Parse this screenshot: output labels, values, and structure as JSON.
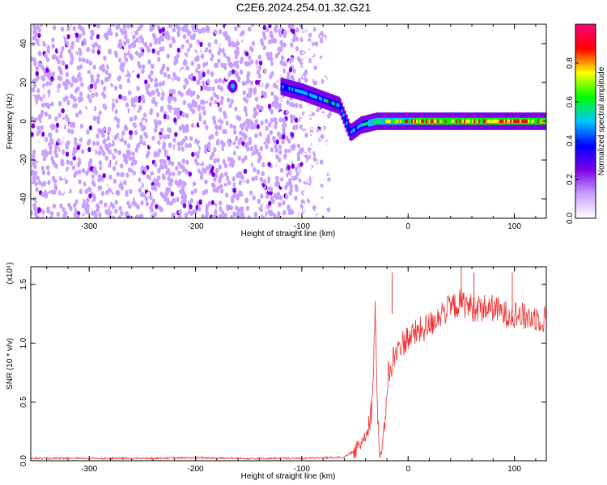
{
  "title": "C2E6.2024.254.01.32.G21",
  "chart_data": [
    {
      "type": "heatmap",
      "xlabel": "Height of straight line (km)",
      "ylabel": "Frequency (Hz)",
      "xlim": [
        -355,
        130
      ],
      "ylim": [
        -50,
        50
      ],
      "xticks": [
        -300,
        -200,
        -100,
        0,
        100
      ],
      "yticks": [
        -40,
        -20,
        0,
        20,
        40
      ],
      "colorbar": {
        "label": "Normalized spectral amplitude",
        "range": [
          0,
          1
        ],
        "ticks": [
          "0.0",
          "0.2",
          "0.4",
          "0.6",
          "0.8"
        ],
        "colors": [
          "#ffffff",
          "#c8a0ff",
          "#7a00e6",
          "#0000ff",
          "#00c8ff",
          "#00ff00",
          "#ffff00",
          "#ff0000",
          "#ff0080"
        ]
      },
      "noise_region_x": [
        -355,
        -70
      ],
      "signal_track": {
        "x": [
          -120,
          -100,
          -80,
          -65,
          -55,
          -45,
          -30,
          0,
          50,
          100,
          130
        ],
        "frequency": [
          18,
          15,
          11,
          8,
          -6,
          -2,
          0,
          0,
          0,
          0,
          0
        ],
        "peak_amplitude": [
          0.45,
          0.5,
          0.55,
          0.5,
          0.45,
          0.55,
          0.7,
          0.8,
          0.85,
          0.85,
          0.8
        ]
      },
      "feature": {
        "x": -165,
        "frequency": 18
      }
    },
    {
      "type": "line",
      "xlabel": "Height of straight line (km)",
      "ylabel": "SNR (10 * v/v)",
      "scale_label": "(x10⁴)",
      "xlim": [
        -355,
        130
      ],
      "ylim": [
        0,
        1.65
      ],
      "xticks": [
        -300,
        -200,
        -100,
        0,
        100
      ],
      "yticks": [
        "0.0",
        "0.5",
        "1.0",
        "1.5"
      ],
      "color": "#ee3333",
      "series": [
        {
          "x": [
            -355,
            -300,
            -250,
            -200,
            -150,
            -100,
            -60,
            -48,
            -40,
            -34,
            -31,
            -29,
            -27,
            -25,
            -22,
            -20,
            -18,
            -16,
            -14,
            -12,
            -10,
            -5,
            0,
            10,
            20,
            30,
            40,
            50,
            60,
            70,
            80,
            90,
            100,
            110,
            120,
            130
          ],
          "y": [
            0.02,
            0.02,
            0.02,
            0.025,
            0.02,
            0.02,
            0.03,
            0.1,
            0.22,
            0.45,
            1.3,
            0.45,
            0.1,
            0.05,
            0.3,
            0.6,
            0.8,
            0.7,
            0.9,
            0.85,
            0.95,
            1.0,
            1.05,
            1.1,
            1.15,
            1.25,
            1.3,
            1.35,
            1.3,
            1.3,
            1.3,
            1.25,
            1.25,
            1.22,
            1.22,
            1.2
          ]
        }
      ],
      "spikes": [
        {
          "x": -15,
          "y": 1.6
        },
        {
          "x": 50,
          "y": 1.65
        },
        {
          "x": 62,
          "y": 1.6
        },
        {
          "x": 98,
          "y": 1.6
        }
      ]
    }
  ]
}
